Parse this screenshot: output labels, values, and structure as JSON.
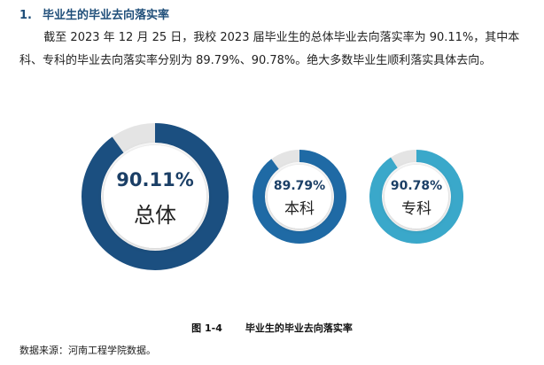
{
  "heading": {
    "number": "1.",
    "title": "毕业生的毕业去向落实率"
  },
  "paragraph": "截至 2023 年 12 月 25 日，我校 2023 届毕业生的总体毕业去向落实率为 90.11%，其中本科、专科的毕业去向落实率分别为 89.79%、90.78%。绝大多数毕业生顺利落实具体去向。",
  "figure": {
    "type": "donut",
    "items": [
      {
        "name": "总体",
        "value": 90.11,
        "value_label": "90.11%",
        "color": "#1b4f80"
      },
      {
        "name": "本科",
        "value": 89.79,
        "value_label": "89.79%",
        "color": "#1f6aa5"
      },
      {
        "name": "专科",
        "value": 90.78,
        "value_label": "90.78%",
        "color": "#3aa8ca"
      }
    ],
    "caption": {
      "number": "图 1-4",
      "title": "毕业生的毕业去向落实率"
    }
  },
  "source": "数据来源：河南工程学院数据。"
}
